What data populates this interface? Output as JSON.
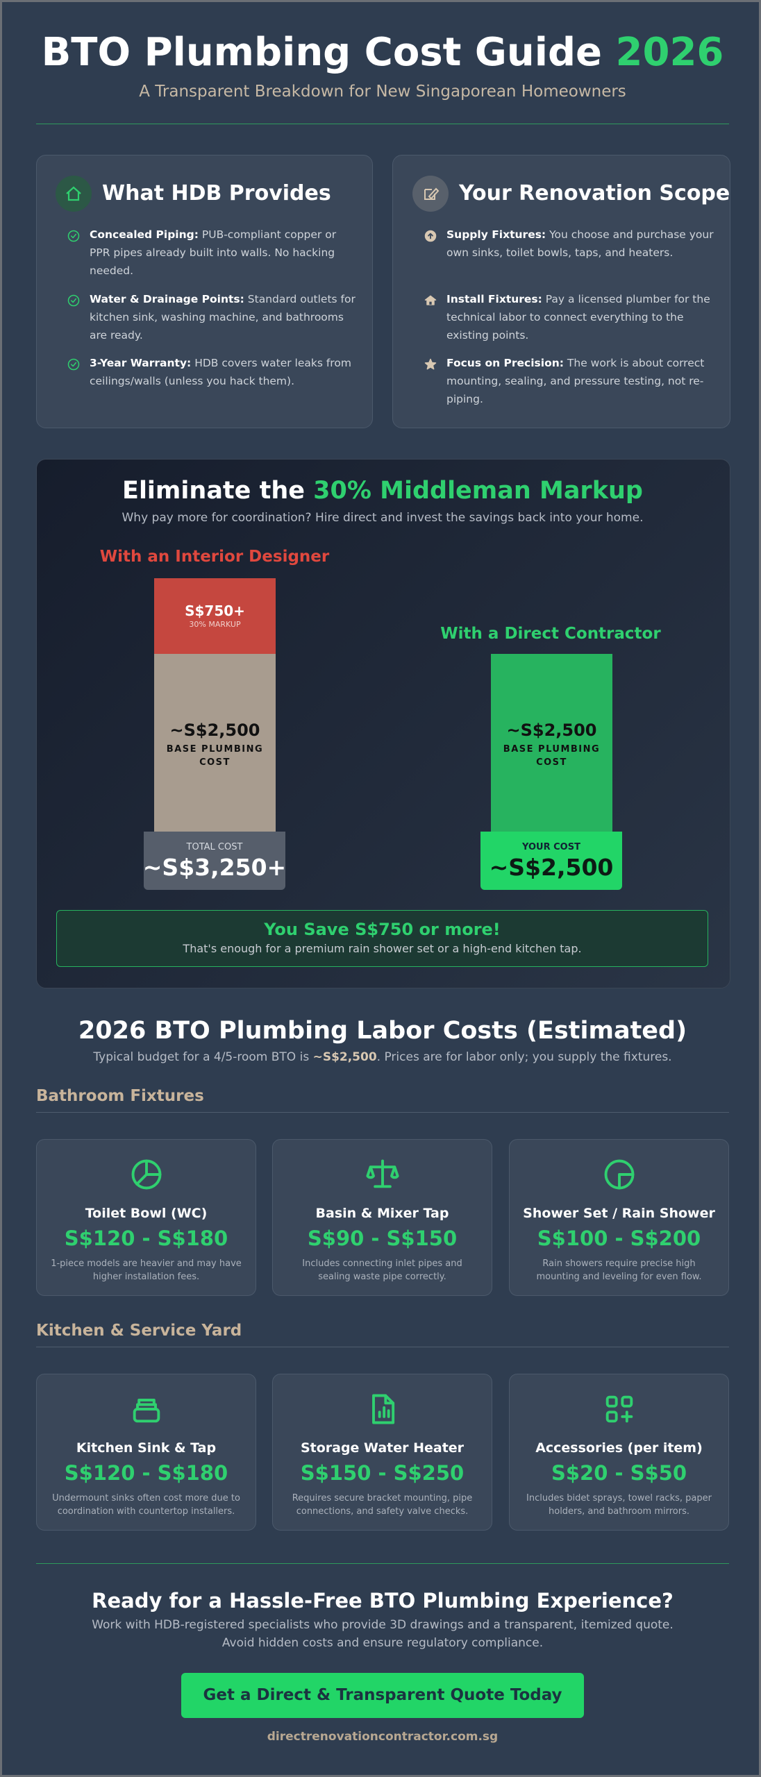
{
  "header": {
    "title": "BTO Plumbing Cost Guide",
    "title_highlight": "2026",
    "subtitle": "A Transparent Breakdown for New Singaporean Homeowners"
  },
  "hdb": {
    "title": "What HDB Provides",
    "items": [
      {
        "label": "Concealed Piping:",
        "text": "PUB-compliant copper or PPR pipes already built into walls. No hacking needed."
      },
      {
        "label": "Water & Drainage Points:",
        "text": "Standard outlets for kitchen sink, washing machine, and bathrooms are ready."
      },
      {
        "label": "3-Year Warranty:",
        "text": "HDB covers water leaks from ceilings/walls (unless you hack them)."
      }
    ]
  },
  "scope": {
    "title": "Your Renovation Scope",
    "items": [
      {
        "label": "Supply Fixtures:",
        "text": "You choose and purchase your own sinks, toilet bowls, taps, and heaters."
      },
      {
        "label": "Install Fixtures:",
        "text": "Pay a licensed plumber for the technical labor to connect everything to the existing points."
      },
      {
        "label": "Focus on Precision:",
        "text": "The work is about correct mounting, sealing, and pressure testing, not re-piping."
      }
    ]
  },
  "comparison": {
    "title": "Eliminate the",
    "title_highlight": "30% Middleman Markup",
    "subtitle": "Why pay more for coordination? Hire direct and invest the savings back into your home.",
    "designer": {
      "label": "With an Interior Designer",
      "markup": "S$750+",
      "markup_note": "30% MARKUP",
      "base": "~S$2,500",
      "base_note": "BASE PLUMBING COST",
      "total_label": "TOTAL COST",
      "total": "~S$3,250+"
    },
    "contractor": {
      "label": "With a Direct Contractor",
      "base": "~S$2,500",
      "base_note": "BASE PLUMBING COST",
      "total_label": "YOUR COST",
      "total": "~S$2,500"
    },
    "savings": {
      "title": "You Save S$750 or more!",
      "text": "That's enough for a premium rain shower set or a high-end kitchen tap."
    }
  },
  "labor": {
    "title": "2026 BTO Plumbing Labor Costs (Estimated)",
    "intro": [
      "Typical budget for a 4/5-room BTO is ",
      "~S$2,500",
      ". Prices are for labor only; you supply the fixtures."
    ],
    "groups": [
      {
        "title": "Bathroom Fixtures",
        "items": [
          {
            "name": "Toilet Bowl (WC)",
            "price": "S$120 - S$180",
            "note": "1-piece models are heavier and may have higher installation fees."
          },
          {
            "name": "Basin & Mixer Tap",
            "price": "S$90 - S$150",
            "note": "Includes connecting inlet pipes and sealing waste pipe correctly."
          },
          {
            "name": "Shower Set / Rain Shower",
            "price": "S$100 - S$200",
            "note": "Rain showers require precise high mounting and leveling for even flow."
          }
        ]
      },
      {
        "title": "Kitchen & Service Yard",
        "items": [
          {
            "name": "Kitchen Sink & Tap",
            "price": "S$120 - S$180",
            "note": "Undermount sinks often cost more due to coordination with countertop installers."
          },
          {
            "name": "Storage Water Heater",
            "price": "S$150 - S$250",
            "note": "Requires secure bracket mounting, pipe connections, and safety valve checks."
          },
          {
            "name": "Accessories (per item)",
            "price": "S$20 - S$50",
            "note": "Includes bidet sprays, towel racks, paper holders, and bathroom mirrors."
          }
        ]
      }
    ]
  },
  "cta": {
    "title": "Ready for a Hassle-Free BTO Plumbing Experience?",
    "lines": [
      "Work with HDB-registered specialists who provide 3D drawings and a transparent, itemized quote.",
      "Avoid hidden costs and ensure regulatory compliance."
    ],
    "button": "Get a Direct & Transparent Quote Today",
    "url": "directrenovationcontractor.com.sg"
  }
}
